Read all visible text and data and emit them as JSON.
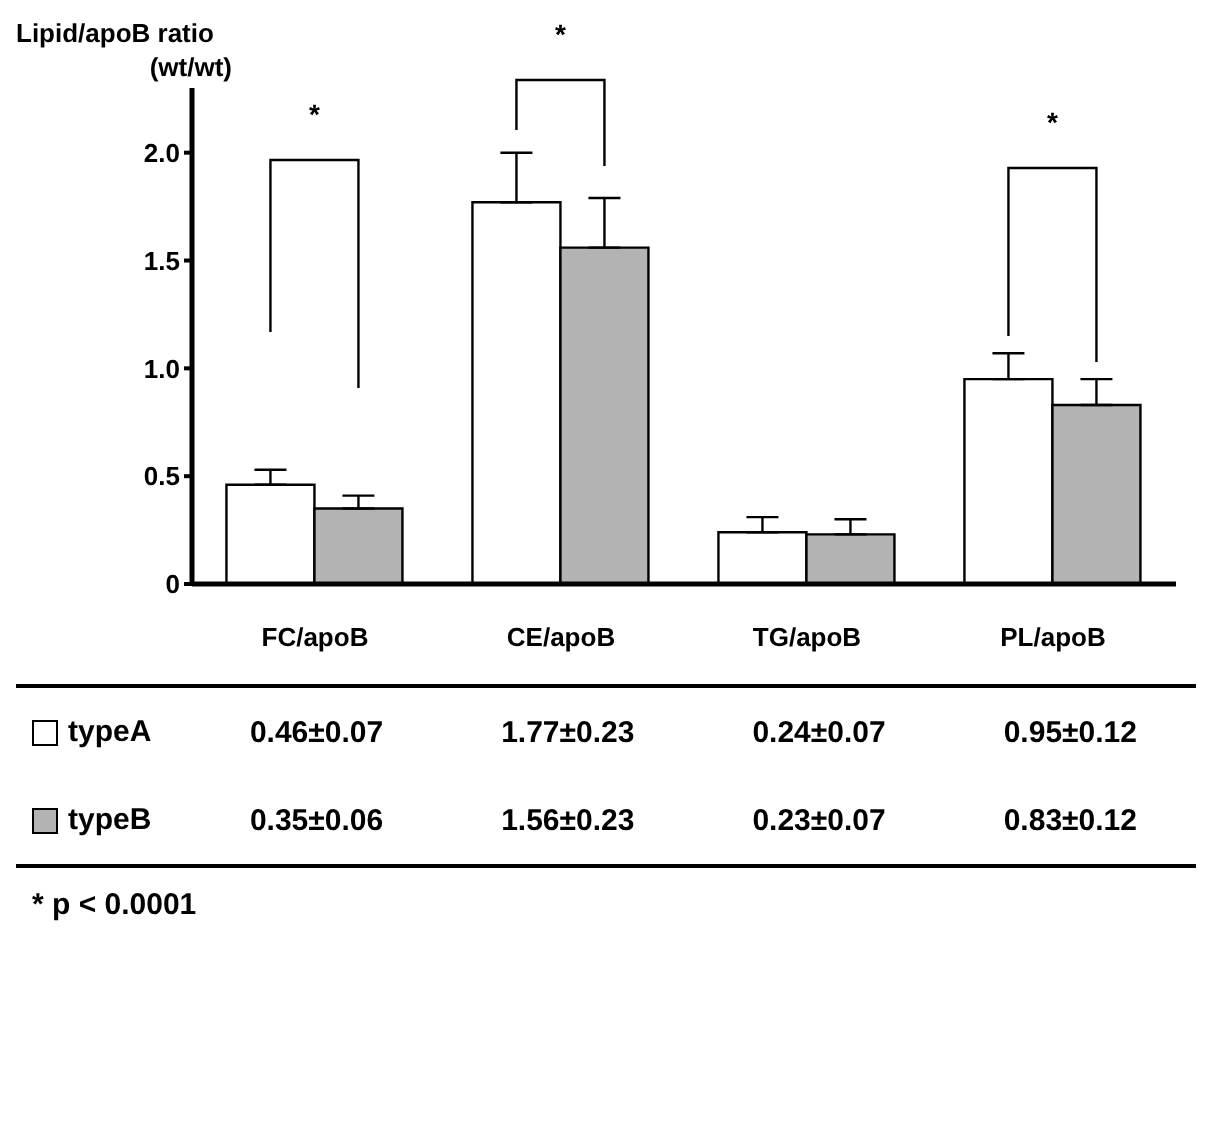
{
  "chart_data": {
    "type": "bar",
    "ylabel": "Lipid/apoB ratio\n(wt/wt)",
    "categories": [
      "FC/apoB",
      "CE/apoB",
      "TG/apoB",
      "PL/apoB"
    ],
    "series": [
      {
        "name": "typeA",
        "color": "#ffffff",
        "values": [
          0.46,
          1.77,
          0.24,
          0.95
        ],
        "errors": [
          0.07,
          0.23,
          0.07,
          0.12
        ],
        "value_labels": [
          "0.46±0.07",
          "1.77±0.23",
          "0.24±0.07",
          "0.95±0.12"
        ]
      },
      {
        "name": "typeB",
        "color": "#b3b3b3",
        "values": [
          0.35,
          1.56,
          0.23,
          0.83
        ],
        "errors": [
          0.06,
          0.23,
          0.07,
          0.12
        ],
        "value_labels": [
          "0.35±0.06",
          "1.56±0.23",
          "0.23±0.07",
          "0.83±0.12"
        ]
      }
    ],
    "ylim": [
      0,
      2.3
    ],
    "yticks": [
      0,
      0.5,
      {
        "value": 1,
        "label": "1.0"
      },
      1.5,
      {
        "value": 2,
        "label": "2.0"
      }
    ],
    "grid": false,
    "legend": "bottom left",
    "annotations": [
      "*",
      "*",
      "*",
      "* p < 0.0001"
    ]
  }
}
